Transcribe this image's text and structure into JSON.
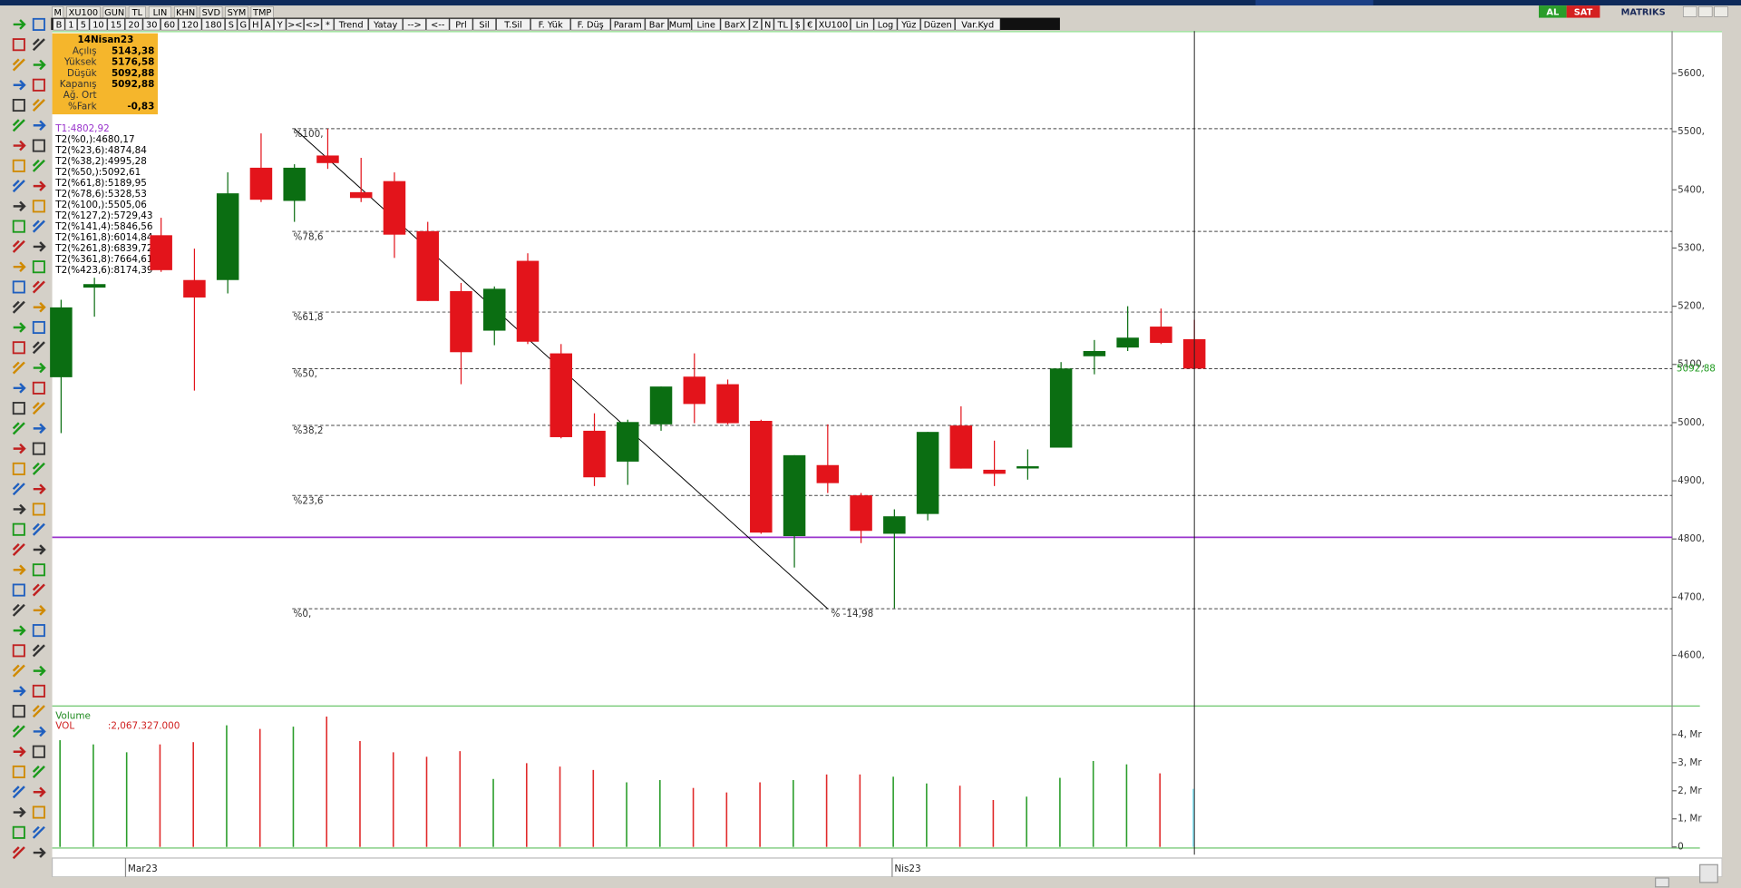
{
  "toolbar": {
    "top": [
      "M",
      "XU100",
      "GUN",
      "TL",
      "LIN",
      "KHN",
      "SVD",
      "SYM",
      "TMP"
    ],
    "top_right": [
      "AL",
      "SAT",
      "MATRIKS"
    ],
    "second": [
      "B",
      "1",
      "5",
      "10",
      "15",
      "20",
      "30",
      "60",
      "120",
      "180",
      "S",
      "G",
      "H",
      "A",
      "Y",
      "><",
      "<>",
      "*",
      "Trend",
      "Yatay",
      "-->",
      "<--",
      "Prl",
      "Sil",
      "T.Sil",
      "F. Yük",
      "F. Düş",
      "Param",
      "Bar",
      "Mum",
      "Line",
      "BarX",
      "Z",
      "N",
      "TL",
      "$",
      "€",
      "XU100",
      "Lin",
      "Log",
      "Yüz",
      "Düzen",
      "Var.Kyd"
    ]
  },
  "info_panel": {
    "title": "14Nisan23",
    "rows": [
      {
        "label": "Açılış",
        "value": "5143,38"
      },
      {
        "label": "Yüksek",
        "value": "5176,58"
      },
      {
        "label": "Düşük",
        "value": "5092,88"
      },
      {
        "label": "Kapanış",
        "value": "5092,88"
      },
      {
        "label": "Ağ. Ort"
      },
      {
        "label": "%Fark",
        "value": "-0,83"
      }
    ]
  },
  "chart_data": {
    "type": "candlestick",
    "categories": [
      null,
      null,
      "Mar23",
      null,
      null,
      null,
      null,
      null,
      null,
      null,
      null,
      null,
      null,
      null,
      null,
      null,
      null,
      null,
      null,
      null,
      null,
      null,
      null,
      null,
      null,
      "Nis23",
      null,
      null,
      null,
      null,
      null,
      null,
      null,
      null,
      null
    ],
    "open": [
      5078,
      5232,
      null,
      5322,
      5245,
      5245,
      5438,
      5381,
      5459,
      5396,
      5415,
      5329,
      5226,
      5158,
      5278,
      5119,
      4986,
      4933,
      4997,
      5079,
      5066,
      5003,
      4805,
      4927,
      4875,
      4809,
      4843,
      4995,
      4919,
      4923,
      4957,
      5114,
      5129,
      5165,
      5143.38
    ],
    "high": [
      5211,
      5249,
      null,
      5352,
      5299,
      5430,
      5497,
      5444,
      5505,
      5455,
      5430,
      5345,
      5240,
      5234,
      5291,
      5135,
      5016,
      5005,
      5062,
      5119,
      5074,
      5005,
      4944,
      4997,
      4879,
      4851,
      4984,
      5028,
      4969,
      4954,
      5104,
      5142,
      5200,
      5196,
      5176.58
    ],
    "low": [
      4982,
      5182,
      null,
      5259,
      5055,
      5222,
      5379,
      5345,
      5436,
      5379,
      5283,
      5209,
      5066,
      5133,
      5135,
      4973,
      4891,
      4893,
      4986,
      4999,
      4997,
      4809,
      4751,
      4879,
      4793,
      4681,
      4832,
      4921,
      4891,
      4902,
      4957,
      5083,
      5123,
      5135,
      5092.88
    ],
    "close": [
      5198,
      5238,
      null,
      5262,
      5215,
      5394,
      5383,
      5438,
      5446,
      5386,
      5323,
      5209,
      5121,
      5230,
      5139,
      4975,
      4906,
      5001,
      5062,
      5032,
      4999,
      4811,
      4944,
      4896,
      4814,
      4839,
      4984,
      4921,
      4912,
      4925,
      5093,
      5123,
      5146,
      5137,
      5092.88
    ],
    "up_color": "#0b6e12",
    "down_color": "#e3141b",
    "ylim": [
      4515,
      5669
    ],
    "yticks": [
      {
        "value": 4600,
        "label": "4600,"
      },
      {
        "value": 4700,
        "label": "4700,"
      },
      {
        "value": 4800,
        "label": "4800,"
      },
      {
        "value": 4900,
        "label": "4900,"
      },
      {
        "value": 5000,
        "label": "5000,"
      },
      {
        "value": 5100,
        "label": "5100,"
      },
      {
        "value": 5200,
        "label": "5200,"
      },
      {
        "value": 5300,
        "label": "5300,"
      },
      {
        "value": 5400,
        "label": "5400,"
      },
      {
        "value": 5500,
        "label": "5500,"
      },
      {
        "value": 5600,
        "label": "5600,"
      }
    ],
    "last_price": {
      "value": 5092.88,
      "label": "5092,88",
      "color": "#1f9a1f"
    },
    "fibonacci": {
      "t1": {
        "text": "T1:4802,92",
        "value": 4802.92,
        "color": "#9933cc"
      },
      "trend_label": "% -14,98",
      "levels": [
        {
          "text": "T2(%0,):4680,17",
          "value": 4680.17,
          "line_label": "%0,"
        },
        {
          "text": "T2(%23,6):4874,84",
          "value": 4874.84,
          "line_label": "%23,6"
        },
        {
          "text": "T2(%38,2):4995,28",
          "value": 4995.28,
          "line_label": "%38,2"
        },
        {
          "text": "T2(%50,):5092,61",
          "value": 5092.61,
          "line_label": "%50,"
        },
        {
          "text": "T2(%61,8):5189,95",
          "value": 5189.95,
          "line_label": "%61,8"
        },
        {
          "text": "T2(%78,6):5328,53",
          "value": 5328.53,
          "line_label": "%78,6"
        },
        {
          "text": "T2(%100,):5505,06",
          "value": 5505.06,
          "line_label": "%100,"
        },
        {
          "text": "T2(%127,2):5729,43",
          "value": 5729.43
        },
        {
          "text": "T2(%141,4):5846,56",
          "value": 5846.56
        },
        {
          "text": "T2(%161,8):6014,84",
          "value": 6014.84
        },
        {
          "text": "T2(%261,8):6839,72",
          "value": 6839.72
        },
        {
          "text": "T2(%361,8):7664,61",
          "value": 7664.61
        },
        {
          "text": "T2(%423,6):8174,39",
          "value": 8174.39
        }
      ]
    },
    "volume": {
      "title": "Volume",
      "name": "VOL",
      "value_label": ":2,067.327.000",
      "values": [
        3.8,
        3.65,
        3.37,
        3.65,
        3.73,
        4.33,
        4.2,
        4.28,
        4.64,
        3.77,
        3.37,
        3.21,
        3.41,
        2.42,
        2.98,
        2.86,
        2.74,
        2.3,
        2.38,
        2.1,
        1.94,
        2.3,
        2.38,
        2.58,
        2.58,
        2.5,
        2.26,
        2.18,
        1.67,
        1.79,
        2.46,
        3.06,
        2.94,
        2.62,
        2.067327
      ],
      "up_color": "#2a9d2a",
      "down_color": "#e02a2a",
      "current_color": "#7fe3f5",
      "ylim": [
        0,
        4.9
      ],
      "yticks": [
        0,
        {
          "value": 1,
          "label": "1, Mr"
        },
        {
          "value": 2,
          "label": "2, Mr"
        },
        {
          "value": 3,
          "label": "3, Mr"
        },
        {
          "value": 4,
          "label": "4, Mr"
        }
      ]
    }
  }
}
